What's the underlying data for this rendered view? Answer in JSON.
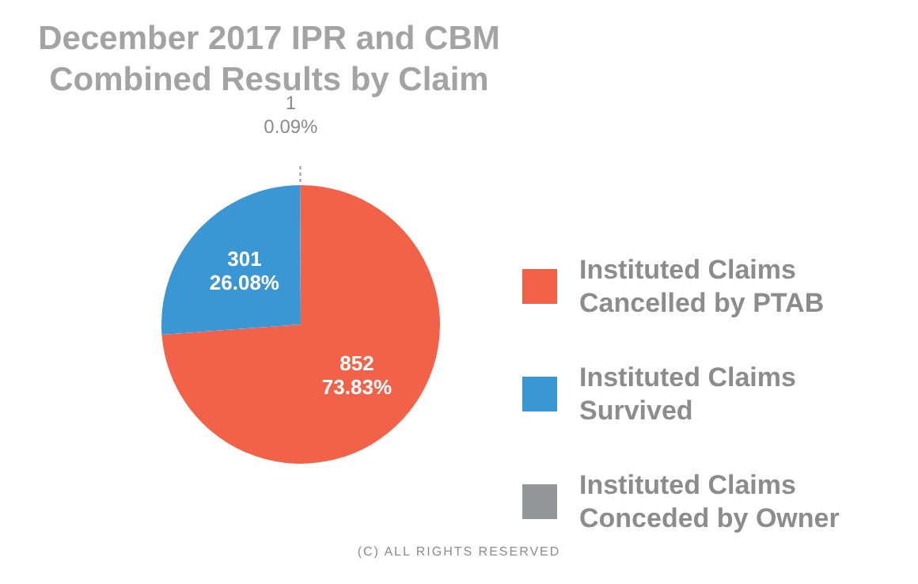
{
  "chart_data": {
    "type": "pie",
    "title": "December 2017 IPR and CBM\nCombined Results by Claim",
    "categories": [
      "Instituted Claims Cancelled by PTAB",
      "Instituted Claims Survived",
      "Instituted Claims Conceded by Owner"
    ],
    "values": [
      852,
      301,
      1
    ],
    "colors": [
      "#f26249",
      "#3a97d3",
      "#939598"
    ],
    "value_labels": [
      "852\n73.83%",
      "301\n26.08%",
      "1\n0.09%"
    ],
    "legend": "right",
    "annotations": [
      "(C) ALL RIGHTS RESERVED"
    ]
  }
}
